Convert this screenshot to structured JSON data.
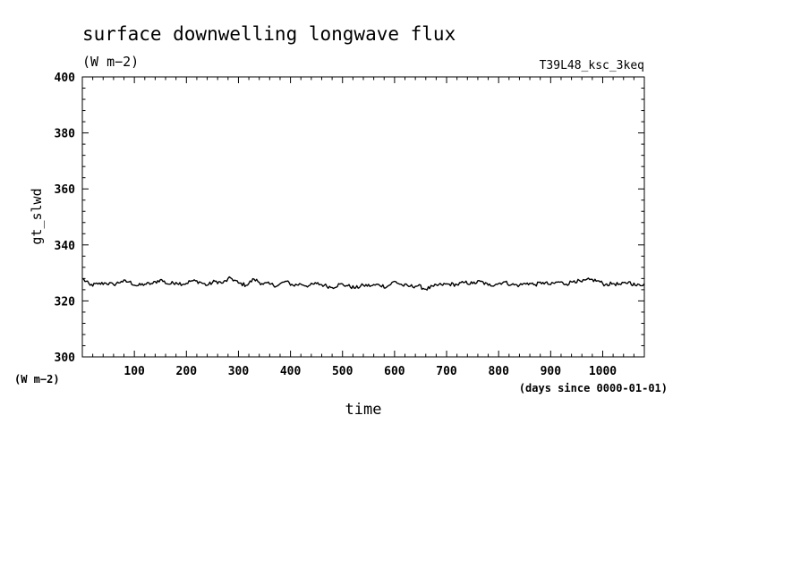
{
  "chart_data": {
    "type": "line",
    "title": "surface downwelling longwave flux",
    "subtitle": "(W m−2)",
    "run_label": "T39L48_ksc_3keq",
    "xlabel": "time",
    "x_unit": "(days since 0000-01-01)",
    "ylabel": "gt_slwd",
    "y_unit": "(W m−2)",
    "xlim": [
      0,
      1080
    ],
    "ylim": [
      300,
      400
    ],
    "x_ticks": [
      100,
      200,
      300,
      400,
      500,
      600,
      700,
      800,
      900,
      1000
    ],
    "x_tick_labels": [
      "100",
      "200",
      "300",
      "400",
      "500",
      "600",
      "700",
      "800",
      "900",
      "1000"
    ],
    "y_ticks": [
      300,
      320,
      340,
      360,
      380,
      400
    ],
    "y_tick_labels": [
      "300",
      "320",
      "340",
      "360",
      "380",
      "400"
    ],
    "grid": false,
    "series": [
      {
        "color": "#000000",
        "x": [
          0,
          15,
          30,
          45,
          60,
          75,
          90,
          105,
          120,
          135,
          150,
          165,
          180,
          195,
          210,
          225,
          240,
          255,
          270,
          285,
          300,
          315,
          330,
          345,
          360,
          375,
          390,
          405,
          420,
          435,
          450,
          465,
          480,
          495,
          510,
          525,
          540,
          555,
          570,
          585,
          600,
          615,
          630,
          645,
          660,
          675,
          690,
          705,
          720,
          735,
          750,
          765,
          780,
          795,
          810,
          825,
          840,
          855,
          870,
          885,
          900,
          915,
          930,
          945,
          960,
          975,
          990,
          1005,
          1020,
          1035,
          1050,
          1065,
          1080
        ],
        "y": [
          328.0,
          325.6,
          326.0,
          326.4,
          325.8,
          327.0,
          326.8,
          325.4,
          326.0,
          326.2,
          327.6,
          326.0,
          326.6,
          326.0,
          327.2,
          326.8,
          325.6,
          327.0,
          326.4,
          328.2,
          326.4,
          325.6,
          327.8,
          326.2,
          326.0,
          325.4,
          327.0,
          325.6,
          326.0,
          325.4,
          326.2,
          325.6,
          324.8,
          326.0,
          325.4,
          324.6,
          325.6,
          325.4,
          325.8,
          325.0,
          327.0,
          325.6,
          325.2,
          325.4,
          324.2,
          325.2,
          325.8,
          326.0,
          325.8,
          326.6,
          326.2,
          327.0,
          325.6,
          326.0,
          326.8,
          325.8,
          325.6,
          326.4,
          325.8,
          326.6,
          325.8,
          326.8,
          326.0,
          327.2,
          326.8,
          327.6,
          327.2,
          325.8,
          326.2,
          325.8,
          326.8,
          325.4,
          326.2
        ]
      }
    ]
  }
}
